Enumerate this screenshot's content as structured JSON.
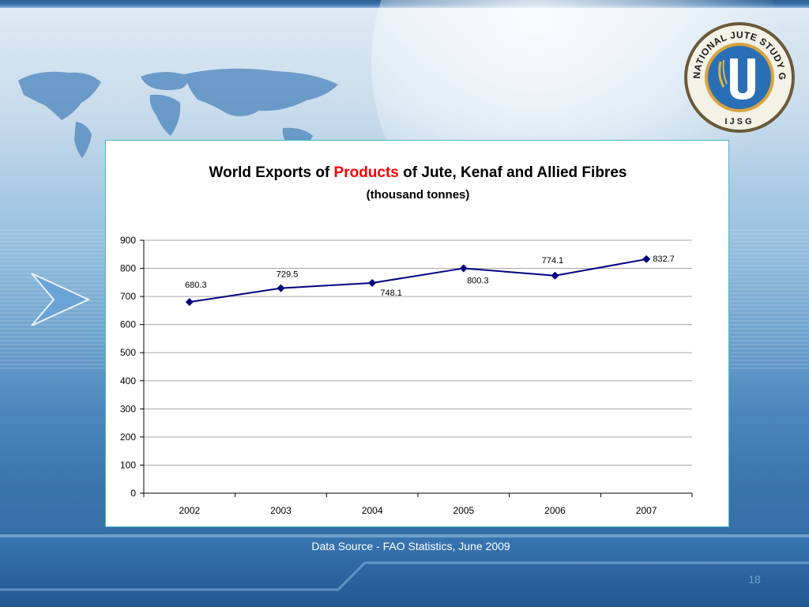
{
  "slide": {
    "source_text": "Data Source - FAO Statistics, June 2009",
    "slide_number": "18",
    "logo_ring_text": "INTERNATIONAL JUTE STUDY GROUP",
    "logo_bottom_text": "IJSG"
  },
  "colors": {
    "line": "#000080",
    "highlight": "#ff0000",
    "panel_border": "#49b8c4",
    "logo_blue": "#2a6fb6",
    "logo_gold": "#e2b54a"
  },
  "chart_data": {
    "type": "line",
    "title_prefix": "World Exports of ",
    "title_highlight": "Products",
    "title_suffix": " of Jute, Kenaf and Allied Fibres",
    "subtitle": "(thousand tonnes)",
    "categories": [
      "2002",
      "2003",
      "2004",
      "2005",
      "2006",
      "2007"
    ],
    "values": [
      680.3,
      729.5,
      748.1,
      800.3,
      774.1,
      832.7
    ],
    "data_labels": [
      "680.3",
      "729.5",
      "748.1",
      "800.3",
      "774.1",
      "832.7"
    ],
    "ylim": [
      0,
      900
    ],
    "yticks": [
      0,
      100,
      200,
      300,
      400,
      500,
      600,
      700,
      800,
      900
    ],
    "grid": true,
    "legend": "none",
    "xlabel": "",
    "ylabel": ""
  }
}
